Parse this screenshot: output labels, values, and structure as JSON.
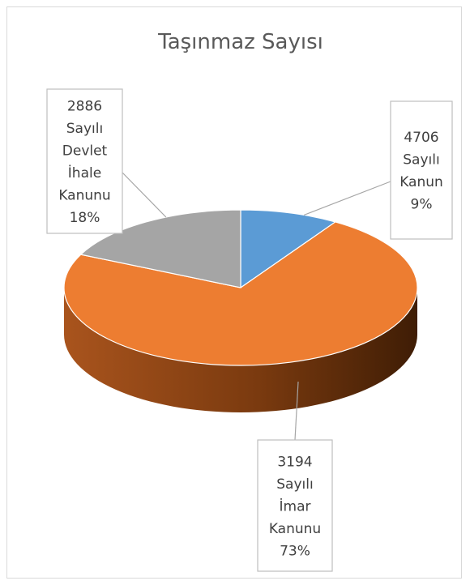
{
  "chart_data": {
    "type": "pie",
    "title": "Taşınmaz Sayısı",
    "slices": [
      {
        "label_lines": [
          "4706",
          "Sayılı",
          "Kanun"
        ],
        "percent_label": "9%",
        "value": 9,
        "color": "#5b9bd5"
      },
      {
        "label_lines": [
          "3194",
          "Sayılı",
          "İmar",
          "Kanunu"
        ],
        "percent_label": "73%",
        "value": 73,
        "color": "#ed7d31"
      },
      {
        "label_lines": [
          "2886",
          "Sayılı",
          "Devlet",
          "İhale",
          "Kanunu"
        ],
        "percent_label": "18%",
        "value": 18,
        "color": "#a5a5a5"
      }
    ],
    "style": "3d-pie",
    "legend": "none",
    "data_labels": "callouts"
  }
}
